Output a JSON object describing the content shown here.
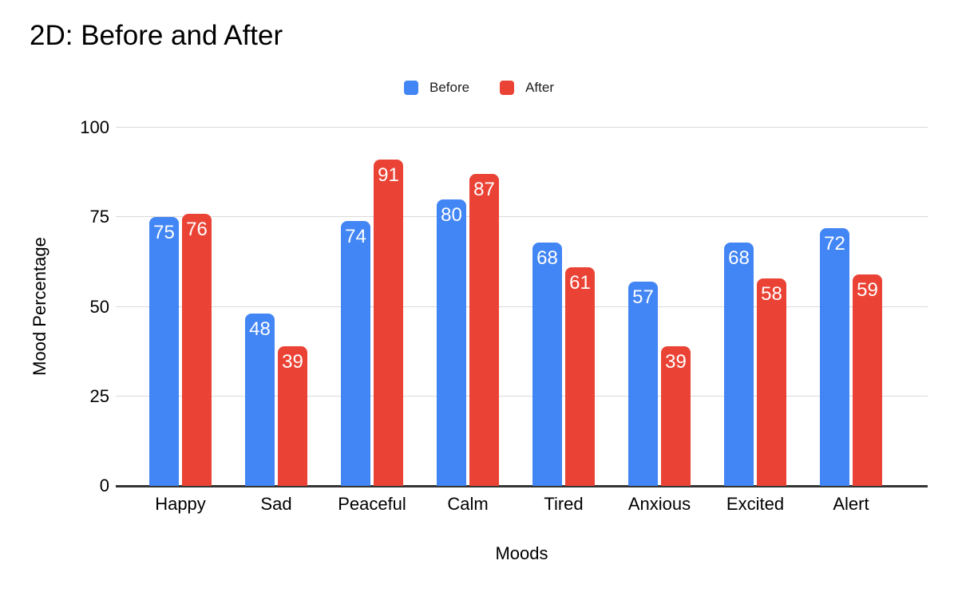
{
  "title": "2D: Before and After",
  "colors": {
    "before": "#4285F4",
    "after": "#EA4335",
    "gridline": "#d9d9d9",
    "axis_line": "#333333",
    "value_label": "#ffffff",
    "text": "#000000"
  },
  "chart_data": {
    "type": "bar",
    "title": "2D: Before and After",
    "categories": [
      "Happy",
      "Sad",
      "Peaceful",
      "Calm",
      "Tired",
      "Anxious",
      "Excited",
      "Alert"
    ],
    "series": [
      {
        "name": "Before",
        "color": "#4285F4",
        "values": [
          75,
          48,
          74,
          80,
          68,
          57,
          68,
          72
        ]
      },
      {
        "name": "After",
        "color": "#EA4335",
        "values": [
          76,
          39,
          91,
          87,
          61,
          39,
          58,
          59
        ]
      }
    ],
    "xlabel": "Moods",
    "ylabel": "Mood Percentage",
    "ylim": [
      0,
      100
    ],
    "y_ticks": [
      0,
      25,
      50,
      75,
      100
    ],
    "grid": true,
    "legend_position": "top-center",
    "value_labels": true
  }
}
